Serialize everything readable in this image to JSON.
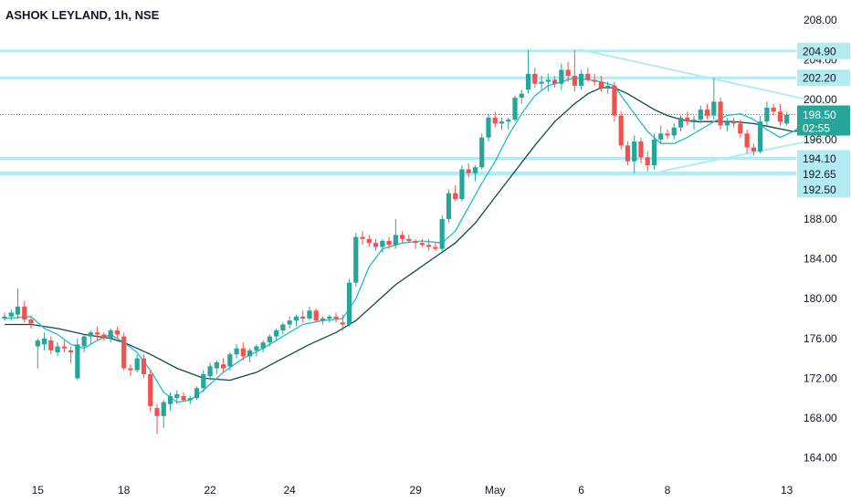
{
  "chart_title": "ASHOK LEYLAND, 1h, NSE",
  "chart_data": {
    "type": "candlestick",
    "title": "ASHOK LEYLAND, 1h, NSE",
    "xlabel": "",
    "ylabel": "",
    "ylim": [
      162,
      209
    ],
    "y_ticks": [
      {
        "value": 208,
        "label": "208.00"
      },
      {
        "value": 204,
        "label": "204.00"
      },
      {
        "value": 200,
        "label": "200.00"
      },
      {
        "value": 196,
        "label": "196.00"
      },
      {
        "value": 188,
        "label": "188.00"
      },
      {
        "value": 184,
        "label": "184.00"
      },
      {
        "value": 180,
        "label": "180.00"
      },
      {
        "value": 176,
        "label": "176.00"
      },
      {
        "value": 172,
        "label": "172.00"
      },
      {
        "value": 168,
        "label": "168.00"
      },
      {
        "value": 164,
        "label": "164.00"
      }
    ],
    "x_ticks": [
      {
        "bar": 5,
        "label": "15"
      },
      {
        "bar": 18,
        "label": "18"
      },
      {
        "bar": 31,
        "label": "22"
      },
      {
        "bar": 43,
        "label": "24"
      },
      {
        "bar": 62,
        "label": "29"
      },
      {
        "bar": 74,
        "label": "May"
      },
      {
        "bar": 87,
        "label": "6"
      },
      {
        "bar": 100,
        "label": "8"
      },
      {
        "bar": 118,
        "label": "13"
      }
    ],
    "price_lines": [
      {
        "value": 204.9,
        "label": "204.90"
      },
      {
        "value": 202.2,
        "label": "202.20"
      },
      {
        "value": 194.1,
        "label": "194.10"
      },
      {
        "value": 192.65,
        "label": "192.65"
      },
      {
        "value": 192.5,
        "label": "192.50"
      }
    ],
    "last_price": {
      "value": 198.5,
      "label": "198.50",
      "countdown": "02:55"
    },
    "trendlines": [
      {
        "from": [
          87,
          205.0
        ],
        "to": [
          124,
          199.6
        ]
      },
      {
        "from": [
          99,
          192.8
        ],
        "to": [
          124,
          196.2
        ]
      }
    ],
    "ohlc": [
      [
        178,
        178.6,
        177.8,
        178.2
      ],
      [
        178.2,
        178.9,
        177.8,
        178.6
      ],
      [
        178.4,
        181.0,
        178.0,
        179.2
      ],
      [
        179.2,
        179.8,
        177.6,
        177.9
      ],
      [
        177.9,
        178.1,
        177.0,
        177.5
      ],
      [
        175.2,
        176.0,
        173.0,
        175.8
      ],
      [
        175.4,
        176.6,
        174.8,
        176.0
      ],
      [
        175.8,
        176.2,
        174.4,
        174.8
      ],
      [
        174.6,
        175.6,
        174.2,
        175.2
      ],
      [
        175.2,
        175.8,
        174.6,
        175.0
      ],
      [
        174.8,
        175.2,
        173.5,
        174.6
      ],
      [
        172.0,
        176.0,
        171.8,
        175.4
      ],
      [
        175.2,
        176.4,
        174.6,
        176.2
      ],
      [
        176.2,
        176.8,
        175.4,
        176.6
      ],
      [
        176.6,
        177.2,
        175.8,
        176.4
      ],
      [
        176.4,
        176.6,
        175.8,
        176.0
      ],
      [
        176.0,
        177.0,
        175.6,
        176.8
      ],
      [
        176.8,
        177.2,
        176.0,
        176.4
      ],
      [
        176.2,
        176.6,
        172.8,
        173.0
      ],
      [
        173.0,
        173.4,
        172.2,
        172.8
      ],
      [
        172.8,
        174.4,
        172.6,
        174.0
      ],
      [
        174.0,
        174.4,
        172.0,
        172.4
      ],
      [
        172.4,
        172.8,
        168.6,
        169.2
      ],
      [
        169.0,
        169.4,
        166.4,
        168.2
      ],
      [
        168.2,
        169.8,
        167.0,
        169.6
      ],
      [
        169.4,
        170.6,
        168.8,
        170.2
      ],
      [
        170.0,
        170.8,
        169.4,
        170.4
      ],
      [
        170.2,
        170.6,
        169.6,
        169.8
      ],
      [
        169.8,
        170.2,
        169.4,
        170.0
      ],
      [
        170.0,
        171.2,
        169.8,
        171.0
      ],
      [
        171.0,
        172.8,
        170.6,
        172.4
      ],
      [
        172.2,
        173.6,
        171.8,
        173.2
      ],
      [
        173.0,
        173.8,
        172.4,
        173.6
      ],
      [
        173.4,
        174.0,
        172.6,
        173.0
      ],
      [
        173.2,
        174.6,
        172.8,
        174.4
      ],
      [
        174.4,
        175.4,
        174.0,
        175.0
      ],
      [
        175.0,
        175.6,
        173.8,
        174.2
      ],
      [
        174.2,
        175.0,
        173.6,
        174.8
      ],
      [
        174.8,
        175.4,
        174.2,
        175.2
      ],
      [
        175.0,
        175.8,
        174.6,
        175.6
      ],
      [
        175.6,
        176.4,
        175.2,
        176.2
      ],
      [
        176.2,
        177.0,
        175.8,
        176.8
      ],
      [
        176.8,
        177.6,
        176.4,
        177.4
      ],
      [
        177.4,
        178.2,
        177.0,
        177.8
      ],
      [
        177.8,
        178.4,
        177.2,
        178.2
      ],
      [
        178.2,
        178.8,
        177.6,
        178.0
      ],
      [
        178.0,
        179.2,
        177.8,
        178.8
      ],
      [
        178.8,
        179.0,
        177.6,
        177.8
      ],
      [
        177.8,
        178.2,
        177.4,
        178.0
      ],
      [
        178.0,
        178.4,
        177.6,
        178.2
      ],
      [
        178.2,
        178.6,
        177.6,
        178.0
      ],
      [
        177.6,
        178.4,
        176.8,
        177.4
      ],
      [
        177.4,
        182.0,
        177.2,
        181.6
      ],
      [
        181.6,
        186.6,
        181.2,
        186.2
      ],
      [
        186.2,
        186.8,
        185.4,
        186.0
      ],
      [
        186.0,
        186.4,
        185.2,
        185.6
      ],
      [
        185.6,
        186.0,
        184.8,
        185.2
      ],
      [
        185.2,
        186.0,
        184.6,
        185.8
      ],
      [
        185.8,
        186.2,
        185.0,
        185.4
      ],
      [
        185.4,
        188.0,
        185.0,
        186.4
      ],
      [
        186.4,
        186.8,
        185.6,
        186.0
      ],
      [
        186.0,
        186.4,
        185.6,
        185.8
      ],
      [
        185.8,
        186.0,
        185.0,
        185.6
      ],
      [
        185.6,
        186.0,
        185.2,
        185.4
      ],
      [
        185.4,
        186.0,
        184.8,
        185.2
      ],
      [
        185.2,
        185.6,
        184.8,
        185.0
      ],
      [
        185.0,
        188.4,
        184.8,
        188.0
      ],
      [
        188.0,
        191.0,
        187.6,
        190.6
      ],
      [
        190.6,
        191.4,
        189.8,
        190.0
      ],
      [
        190.0,
        193.4,
        189.8,
        193.0
      ],
      [
        193.0,
        193.6,
        192.2,
        192.6
      ],
      [
        192.6,
        193.4,
        191.8,
        193.2
      ],
      [
        193.2,
        196.6,
        193.0,
        196.2
      ],
      [
        196.2,
        198.6,
        195.8,
        198.2
      ],
      [
        198.2,
        198.8,
        197.2,
        197.6
      ],
      [
        197.6,
        198.2,
        197.0,
        197.8
      ],
      [
        197.8,
        198.2,
        197.0,
        198.0
      ],
      [
        198.0,
        200.4,
        197.8,
        200.2
      ],
      [
        200.2,
        201.0,
        199.6,
        200.6
      ],
      [
        201.0,
        205.0,
        200.6,
        202.6
      ],
      [
        202.6,
        203.2,
        201.2,
        201.6
      ],
      [
        201.6,
        202.4,
        201.0,
        201.8
      ],
      [
        201.8,
        202.6,
        200.8,
        202.0
      ],
      [
        202.0,
        202.4,
        201.2,
        201.6
      ],
      [
        201.6,
        203.6,
        201.0,
        203.0
      ],
      [
        203.0,
        203.8,
        201.8,
        202.4
      ],
      [
        202.4,
        205.0,
        200.8,
        201.4
      ],
      [
        201.4,
        203.0,
        201.0,
        202.6
      ],
      [
        202.6,
        203.2,
        201.8,
        202.0
      ],
      [
        202.0,
        202.6,
        201.4,
        201.8
      ],
      [
        201.8,
        202.4,
        200.8,
        201.2
      ],
      [
        201.2,
        201.8,
        200.6,
        201.4
      ],
      [
        201.4,
        201.8,
        197.8,
        198.4
      ],
      [
        198.4,
        198.8,
        195.0,
        195.4
      ],
      [
        195.4,
        195.8,
        193.4,
        193.8
      ],
      [
        193.8,
        196.4,
        192.6,
        195.8
      ],
      [
        195.8,
        196.2,
        193.6,
        194.2
      ],
      [
        194.2,
        194.8,
        192.8,
        193.4
      ],
      [
        193.4,
        196.6,
        193.0,
        196.0
      ],
      [
        196.0,
        197.4,
        195.6,
        196.6
      ],
      [
        196.6,
        197.0,
        196.0,
        196.4
      ],
      [
        196.4,
        197.6,
        196.0,
        197.2
      ],
      [
        197.2,
        198.4,
        196.8,
        198.2
      ],
      [
        198.2,
        198.8,
        197.4,
        197.8
      ],
      [
        197.8,
        198.4,
        197.0,
        198.0
      ],
      [
        198.0,
        199.4,
        197.6,
        199.0
      ],
      [
        199.0,
        199.6,
        198.0,
        198.4
      ],
      [
        198.4,
        202.2,
        198.0,
        199.8
      ],
      [
        199.8,
        200.2,
        197.0,
        197.4
      ],
      [
        197.4,
        198.2,
        196.8,
        197.8
      ],
      [
        197.8,
        198.2,
        197.2,
        197.6
      ],
      [
        197.6,
        198.0,
        196.2,
        196.6
      ],
      [
        196.6,
        197.0,
        194.6,
        195.2
      ],
      [
        195.2,
        195.6,
        194.4,
        194.8
      ],
      [
        194.8,
        198.4,
        194.6,
        197.8
      ],
      [
        197.8,
        199.8,
        197.4,
        199.2
      ],
      [
        199.2,
        199.6,
        198.4,
        198.8
      ],
      [
        198.8,
        199.6,
        197.4,
        197.8
      ],
      [
        197.6,
        198.8,
        197.4,
        198.5
      ]
    ],
    "ma_fast": [
      [
        0,
        178.0
      ],
      [
        4,
        178.2
      ],
      [
        6,
        177.0
      ],
      [
        8,
        176.4
      ],
      [
        10,
        175.4
      ],
      [
        12,
        175.0
      ],
      [
        14,
        175.8
      ],
      [
        16,
        176.4
      ],
      [
        18,
        175.6
      ],
      [
        20,
        174.6
      ],
      [
        22,
        172.8
      ],
      [
        24,
        170.6
      ],
      [
        26,
        169.6
      ],
      [
        28,
        169.8
      ],
      [
        30,
        170.8
      ],
      [
        33,
        172.6
      ],
      [
        36,
        174.0
      ],
      [
        39,
        175.0
      ],
      [
        42,
        176.2
      ],
      [
        45,
        177.4
      ],
      [
        48,
        177.8
      ],
      [
        51,
        178.0
      ],
      [
        53,
        180.0
      ],
      [
        55,
        183.2
      ],
      [
        57,
        185.0
      ],
      [
        60,
        185.6
      ],
      [
        63,
        185.8
      ],
      [
        66,
        185.6
      ],
      [
        68,
        186.8
      ],
      [
        70,
        189.2
      ],
      [
        72,
        191.6
      ],
      [
        74,
        193.8
      ],
      [
        76,
        196.4
      ],
      [
        78,
        198.6
      ],
      [
        80,
        200.4
      ],
      [
        82,
        201.4
      ],
      [
        84,
        201.8
      ],
      [
        86,
        202.2
      ],
      [
        88,
        202.0
      ],
      [
        90,
        201.8
      ],
      [
        92,
        201.4
      ],
      [
        93,
        200.4
      ],
      [
        95,
        198.6
      ],
      [
        97,
        196.8
      ],
      [
        99,
        195.6
      ],
      [
        101,
        195.6
      ],
      [
        103,
        196.2
      ],
      [
        105,
        197.0
      ],
      [
        107,
        197.8
      ],
      [
        109,
        198.4
      ],
      [
        111,
        198.6
      ],
      [
        113,
        198.0
      ],
      [
        115,
        197.0
      ],
      [
        117,
        196.2
      ],
      [
        119,
        196.8
      ],
      [
        121,
        197.8
      ],
      [
        124,
        198.3
      ]
    ],
    "ma_slow": [
      [
        0,
        177.4
      ],
      [
        4,
        177.4
      ],
      [
        8,
        177.0
      ],
      [
        12,
        176.4
      ],
      [
        16,
        176.0
      ],
      [
        18,
        175.6
      ],
      [
        22,
        174.4
      ],
      [
        26,
        173.0
      ],
      [
        30,
        172.0
      ],
      [
        34,
        171.8
      ],
      [
        38,
        172.6
      ],
      [
        42,
        174.0
      ],
      [
        46,
        175.4
      ],
      [
        50,
        176.6
      ],
      [
        53,
        177.8
      ],
      [
        56,
        179.6
      ],
      [
        59,
        181.4
      ],
      [
        62,
        182.8
      ],
      [
        65,
        184.2
      ],
      [
        68,
        185.6
      ],
      [
        71,
        187.6
      ],
      [
        74,
        190.2
      ],
      [
        77,
        192.8
      ],
      [
        80,
        195.4
      ],
      [
        83,
        197.8
      ],
      [
        86,
        199.6
      ],
      [
        88,
        200.6
      ],
      [
        90,
        201.2
      ],
      [
        92,
        201.2
      ],
      [
        94,
        200.6
      ],
      [
        96,
        199.8
      ],
      [
        98,
        199.0
      ],
      [
        100,
        198.4
      ],
      [
        102,
        198.0
      ],
      [
        104,
        197.8
      ],
      [
        107,
        197.8
      ],
      [
        110,
        197.8
      ],
      [
        113,
        197.6
      ],
      [
        116,
        197.2
      ],
      [
        119,
        196.8
      ],
      [
        121,
        197.0
      ],
      [
        124,
        197.4
      ]
    ],
    "colors": {
      "up": "#26a69a",
      "down": "#ef5350",
      "ma_fast": "#1fbcd2",
      "ma_slow": "#0d4d47",
      "hline": "#b2ebf2",
      "trend": "#b2ebf2",
      "last_price": "#26a69a",
      "axis_text": "#131722",
      "grid": "none"
    },
    "grid": false
  }
}
